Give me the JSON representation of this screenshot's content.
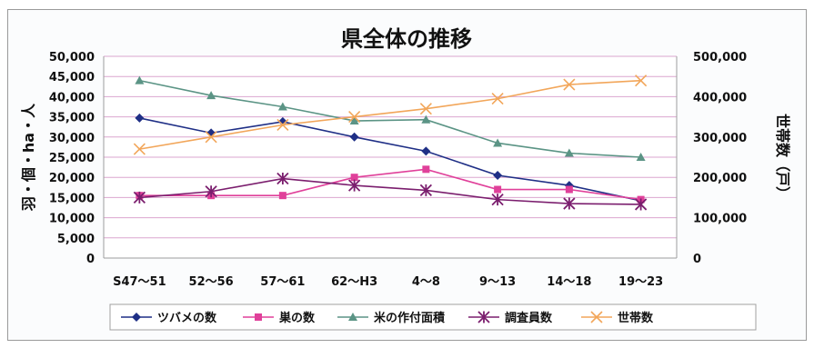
{
  "chart_data": {
    "type": "line",
    "title": "県全体の推移",
    "categories": [
      "S47〜51",
      "52〜56",
      "57〜61",
      "62〜H3",
      "4〜8",
      "9〜13",
      "14〜18",
      "19〜23"
    ],
    "y_left": {
      "label": "羽・個・ha・人",
      "lim": [
        0,
        50000
      ],
      "ticks": [
        "0",
        "5,000",
        "10,000",
        "15,000",
        "20,000",
        "25,000",
        "30,000",
        "35,000",
        "40,000",
        "45,000",
        "50,000"
      ]
    },
    "y_right": {
      "label": "世帯数（戸）",
      "lim": [
        0,
        500000
      ],
      "ticks": [
        "0",
        "100,000",
        "200,000",
        "300,000",
        "400,000",
        "500,000"
      ]
    },
    "grid": true,
    "legend_position": "bottom",
    "series": [
      {
        "name": "ツバメの数",
        "axis": "left",
        "marker": "diamond",
        "color": "#1f2f86",
        "values": [
          34700,
          31000,
          33800,
          30000,
          26500,
          20500,
          18000,
          14200
        ]
      },
      {
        "name": "巣の数",
        "axis": "left",
        "marker": "square",
        "color": "#e0409a",
        "values": [
          15500,
          15500,
          15500,
          20000,
          22000,
          17000,
          17000,
          14500
        ]
      },
      {
        "name": "米の作付面積",
        "axis": "left",
        "marker": "triangle",
        "color": "#5b9485",
        "values": [
          44000,
          40300,
          37500,
          34000,
          34300,
          28500,
          26000,
          25000
        ]
      },
      {
        "name": "調査員数",
        "axis": "left",
        "marker": "star",
        "color": "#7b1e6e",
        "values": [
          15000,
          16500,
          19700,
          18000,
          16800,
          14500,
          13500,
          13300
        ]
      },
      {
        "name": "世帯数",
        "axis": "right",
        "marker": "x",
        "color": "#f2a65a",
        "values": [
          270000,
          300000,
          330000,
          350000,
          370000,
          395000,
          430000,
          440000
        ]
      }
    ]
  }
}
